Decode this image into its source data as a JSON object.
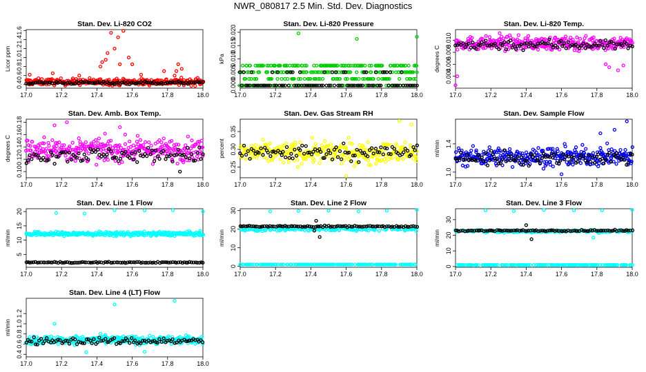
{
  "title": "NWR_080817  2.5 Min. Std. Dev. Diagnostics",
  "colors": {
    "red": "#ff0000",
    "green": "#00cc00",
    "magenta": "#ff00ff",
    "yellow": "#ffff00",
    "blue": "#0000ee",
    "cyan": "#00ffff",
    "black": "#000000"
  },
  "chart_data": [
    {
      "type": "scatter",
      "title": "Stan. Dev. Li-820 CO2",
      "ylabel": "Licor ppm",
      "xlim": [
        17.0,
        18.0
      ],
      "ylim": [
        0.32,
        1.62
      ],
      "xticks": [
        "17.0",
        "17.2",
        "17.4",
        "17.6",
        "17.8",
        "18.0"
      ],
      "yticks": [
        "0.4",
        "0.6",
        "0.8",
        "1.0",
        "1.2",
        "1.4",
        "1.6"
      ],
      "series": [
        {
          "color": "red",
          "base": 0.46,
          "spread": 0.07,
          "points": [
            [
              17.43,
              0.9
            ],
            [
              17.46,
              1.1
            ],
            [
              17.5,
              1.2
            ],
            [
              17.52,
              1.45
            ],
            [
              17.55,
              1.6
            ],
            [
              17.48,
              1.55
            ],
            [
              17.58,
              1.0
            ],
            [
              17.6,
              0.85
            ],
            [
              17.42,
              0.8
            ],
            [
              17.45,
              0.95
            ],
            [
              17.53,
              0.85
            ],
            [
              17.85,
              0.7
            ],
            [
              17.86,
              0.85
            ],
            [
              17.88,
              0.75
            ],
            [
              17.84,
              0.6
            ],
            [
              17.78,
              0.7
            ],
            [
              17.02,
              0.62
            ],
            [
              17.15,
              0.65
            ],
            [
              17.3,
              0.6
            ],
            [
              17.65,
              0.62
            ],
            [
              17.97,
              0.55
            ],
            [
              17.66,
              0.4
            ]
          ]
        },
        {
          "color": "black",
          "base": 0.44,
          "spread": 0.03,
          "points": []
        }
      ]
    },
    {
      "type": "scatter",
      "title": "Stan. Dev. Li-820 Pressure",
      "ylabel": "kPa",
      "xlim": [
        17.0,
        18.0
      ],
      "ylim": [
        -0.001,
        0.021
      ],
      "xticks": [
        "17.0",
        "17.2",
        "17.4",
        "17.6",
        "17.8",
        "18.0"
      ],
      "yticks": [
        "0.000",
        "0.005",
        "0.010",
        "0.015",
        "0.020"
      ],
      "series": [
        {
          "color": "green",
          "levels": [
            0.0,
            0.0025,
            0.005,
            0.0075
          ],
          "points": [
            [
              17.33,
              0.0196
            ],
            [
              17.66,
              0.0175
            ],
            [
              18.0,
              0.0183
            ]
          ]
        },
        {
          "color": "black",
          "levels": [
            0.0,
            0.0,
            0.005
          ],
          "points": []
        }
      ]
    },
    {
      "type": "scatter",
      "title": "Stan. Dev. Li-820 Temp.",
      "ylabel": "degrees C",
      "xlim": [
        17.0,
        18.0
      ],
      "ylim": [
        0.002,
        0.0118
      ],
      "xticks": [
        "17.0",
        "17.2",
        "17.4",
        "17.6",
        "17.8",
        "18.0"
      ],
      "yticks": [
        "0.004",
        "0.006",
        "0.008",
        "0.010"
      ],
      "series": [
        {
          "color": "magenta",
          "base": 0.0095,
          "spread": 0.0011,
          "points": [
            [
              17.0,
              0.0025
            ],
            [
              17.01,
              0.004
            ],
            [
              17.85,
              0.006
            ],
            [
              17.87,
              0.0055
            ],
            [
              17.92,
              0.005
            ],
            [
              17.95,
              0.0058
            ],
            [
              17.25,
              0.0112
            ]
          ]
        },
        {
          "color": "black",
          "base": 0.0093,
          "spread": 0.0009,
          "points": []
        }
      ]
    },
    {
      "type": "scatter",
      "title": "Stan. Dev. Amb. Box Temp.",
      "ylabel": "degrees C",
      "xlim": [
        17.0,
        18.0
      ],
      "ylim": [
        0.09,
        0.185
      ],
      "xticks": [
        "17.0",
        "17.2",
        "17.4",
        "17.6",
        "17.8",
        "18.0"
      ],
      "yticks": [
        "0.10",
        "0.12",
        "0.14",
        "0.16",
        "0.18"
      ],
      "series": [
        {
          "color": "magenta",
          "base": 0.135,
          "spread": 0.018,
          "points": [
            [
              17.23,
              0.18
            ],
            [
              17.16,
              0.175
            ],
            [
              17.53,
              0.172
            ]
          ]
        },
        {
          "color": "black",
          "base": 0.127,
          "spread": 0.012,
          "points": [
            [
              17.87,
              0.1
            ]
          ]
        }
      ]
    },
    {
      "type": "scatter",
      "title": "Stan. Dev. Gas Stream RH",
      "ylabel": "percent",
      "xlim": [
        17.0,
        18.0
      ],
      "ylim": [
        0.22,
        0.385
      ],
      "xticks": [
        "17.0",
        "17.2",
        "17.4",
        "17.6",
        "17.8",
        "18.0"
      ],
      "yticks": [
        "0.25",
        "0.30",
        "0.35"
      ],
      "series": [
        {
          "color": "yellow",
          "base": 0.29,
          "spread": 0.03,
          "points": [
            [
              17.6,
              0.225
            ],
            [
              17.9,
              0.38
            ],
            [
              17.97,
              0.37
            ]
          ]
        },
        {
          "color": "black",
          "base": 0.292,
          "spread": 0.022,
          "points": []
        }
      ]
    },
    {
      "type": "scatter",
      "title": "Stan. Dev. Sample Flow",
      "ylabel": "ml/min",
      "xlim": [
        17.0,
        18.0
      ],
      "ylim": [
        0.92,
        1.75
      ],
      "xticks": [
        "17.0",
        "17.2",
        "17.4",
        "17.6",
        "17.8",
        "18.0"
      ],
      "yticks": [
        "1.0",
        "1.4"
      ],
      "series": [
        {
          "color": "blue",
          "base": 1.22,
          "spread": 0.13,
          "points": [
            [
              17.97,
              1.72
            ],
            [
              17.82,
              1.55
            ],
            [
              17.9,
              1.6
            ],
            [
              17.6,
              0.97
            ]
          ]
        },
        {
          "color": "black",
          "base": 1.2,
          "spread": 0.1,
          "points": []
        }
      ]
    },
    {
      "type": "scatter",
      "title": "Stan. Dev. Line 1 Flow",
      "ylabel": "ml/min",
      "xlim": [
        17.0,
        18.0
      ],
      "ylim": [
        0.5,
        21.0
      ],
      "xticks": [
        "17.0",
        "17.2",
        "17.4",
        "17.6",
        "17.8",
        "18.0"
      ],
      "yticks": [
        "5",
        "10",
        "15",
        "20"
      ],
      "series": [
        {
          "color": "cyan",
          "base": 12.2,
          "spread": 0.7,
          "points": [
            [
              17.17,
              19.5
            ],
            [
              17.33,
              19.3
            ],
            [
              17.5,
              20.5
            ],
            [
              17.67,
              20.4
            ],
            [
              17.83,
              20.5
            ],
            [
              18.0,
              20.0
            ]
          ]
        },
        {
          "color": "black",
          "base": 2.2,
          "spread": 0.2,
          "points": []
        }
      ]
    },
    {
      "type": "scatter",
      "title": "Stan. Dev. Line 2 Flow",
      "ylabel": "ml/min",
      "xlim": [
        17.0,
        18.0
      ],
      "ylim": [
        -0.5,
        31.0
      ],
      "xticks": [
        "17.0",
        "17.2",
        "17.4",
        "17.6",
        "17.8",
        "18.0"
      ],
      "yticks": [
        "0",
        "10",
        "20",
        "30"
      ],
      "series": [
        {
          "color": "cyan",
          "base": 20.0,
          "spread": 0.9,
          "low": 1.0,
          "points": [
            [
              17.17,
              29.5
            ],
            [
              17.33,
              29.8
            ],
            [
              17.5,
              30.0
            ],
            [
              17.67,
              29.5
            ],
            [
              17.83,
              30.0
            ],
            [
              18.0,
              31.0
            ]
          ]
        },
        {
          "color": "black",
          "base": 21.5,
          "spread": 0.4,
          "points": [
            [
              17.45,
              15.8
            ],
            [
              17.43,
              24.5
            ],
            [
              17.42,
              19.2
            ]
          ]
        }
      ]
    },
    {
      "type": "scatter",
      "title": "Stan. Dev. Line 3 Flow",
      "ylabel": "ml/min",
      "xlim": [
        17.0,
        18.0
      ],
      "ylim": [
        -0.5,
        37.0
      ],
      "xticks": [
        "17.0",
        "17.2",
        "17.4",
        "17.6",
        "17.8",
        "18.0"
      ],
      "yticks": [
        "0",
        "10",
        "20",
        "30"
      ],
      "series": [
        {
          "color": "cyan",
          "base": 22.5,
          "spread": 0.9,
          "low": 1.0,
          "points": [
            [
              17.17,
              36.0
            ],
            [
              17.33,
              35.5
            ],
            [
              17.5,
              36.5
            ],
            [
              17.67,
              36.0
            ],
            [
              17.83,
              36.0
            ],
            [
              18.0,
              37.0
            ],
            [
              17.78,
              18.5
            ]
          ]
        },
        {
          "color": "black",
          "base": 23.0,
          "spread": 0.4,
          "points": [
            [
              17.43,
              17.5
            ],
            [
              17.4,
              26.5
            ]
          ]
        }
      ]
    },
    {
      "type": "scatter",
      "title": "Stan. Dev. Line 4 (LT) Flow",
      "ylabel": "ml/min",
      "xlim": [
        17.0,
        18.0
      ],
      "ylim": [
        0.35,
        1.5
      ],
      "xticks": [
        "17.0",
        "17.2",
        "17.4",
        "17.6",
        "17.8",
        "18.0"
      ],
      "yticks": [
        "0.4",
        "0.6",
        "0.8",
        "1.0",
        "1.2"
      ],
      "series": [
        {
          "color": "cyan",
          "base": 0.68,
          "spread": 0.08,
          "points": [
            [
              17.16,
              1.0
            ],
            [
              17.5,
              1.38
            ],
            [
              17.84,
              1.45
            ],
            [
              17.34,
              0.44
            ],
            [
              17.67,
              0.45
            ]
          ]
        },
        {
          "color": "black",
          "base": 0.66,
          "spread": 0.07,
          "points": []
        }
      ]
    }
  ]
}
